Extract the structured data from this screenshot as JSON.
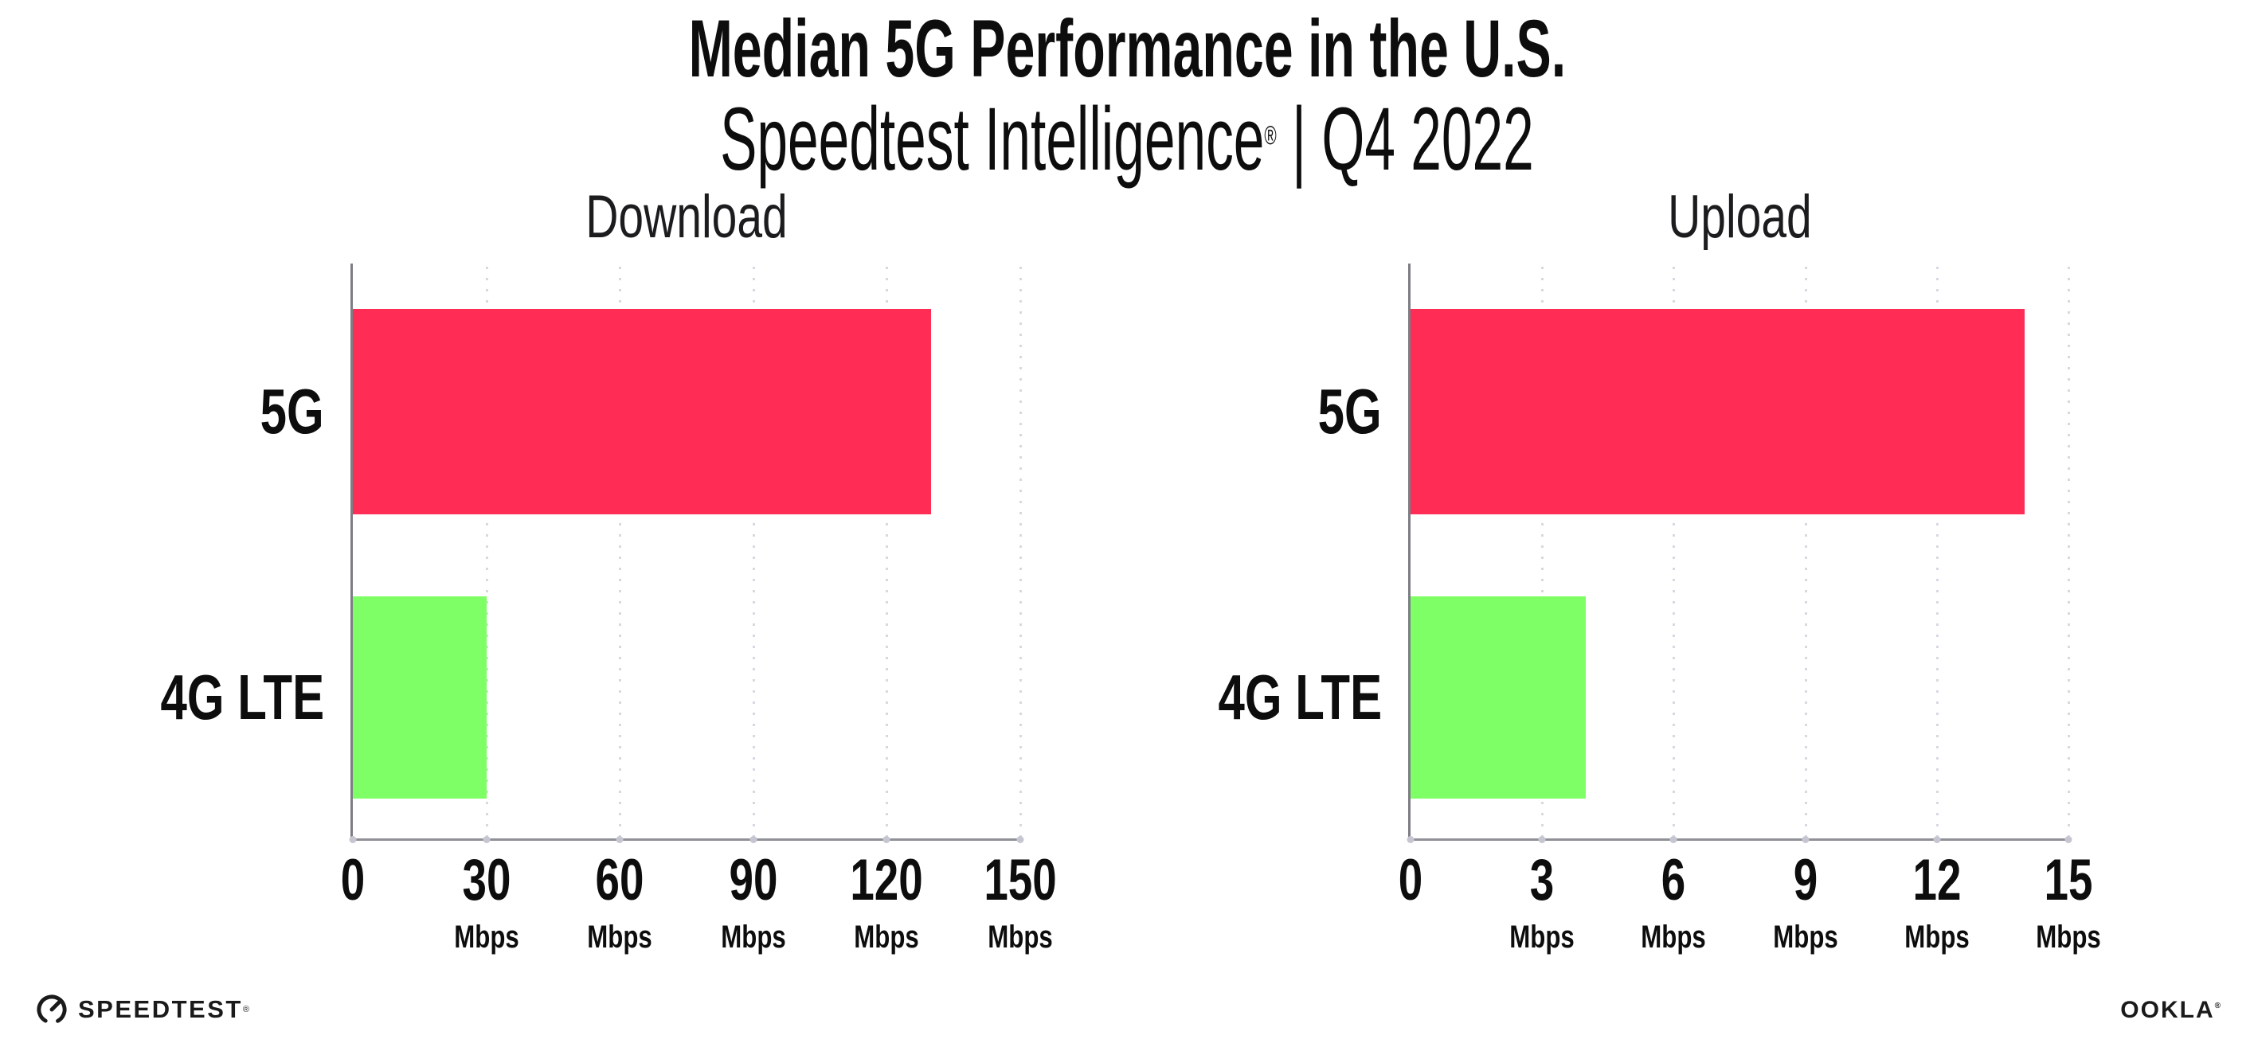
{
  "header": {
    "title": "Median 5G Performance in the U.S.",
    "subtitle_brand": "Speedtest Intelligence",
    "subtitle_reg": "®",
    "subtitle_rest": " | Q4 2022"
  },
  "footer": {
    "speedtest_label": "SPEEDTEST",
    "speedtest_reg": "®",
    "ookla_label": "OOKLA",
    "ookla_reg": "®"
  },
  "colors": {
    "bar_5g": "#FF2D55",
    "bar_4g_lte": "#7FFF66",
    "axis": "#8F8F97",
    "gridline_dots": "#D8D8E2",
    "text": "#0D0D0D"
  },
  "chart_data": [
    {
      "type": "bar",
      "orientation": "horizontal",
      "title": "Download",
      "categories": [
        "5G",
        "4G LTE"
      ],
      "values": [
        130,
        30
      ],
      "unit": "Mbps",
      "xlim": [
        0,
        150
      ],
      "ticks": [
        0,
        30,
        60,
        90,
        120,
        150
      ],
      "tick_unit_label": "Mbps",
      "grid": "vertical-dotted",
      "legend": "none",
      "bar_colors": [
        "#FF2D55",
        "#7FFF66"
      ]
    },
    {
      "type": "bar",
      "orientation": "horizontal",
      "title": "Upload",
      "categories": [
        "5G",
        "4G LTE"
      ],
      "values": [
        14,
        4
      ],
      "unit": "Mbps",
      "xlim": [
        0,
        15
      ],
      "ticks": [
        0,
        3,
        6,
        9,
        12,
        15
      ],
      "tick_unit_label": "Mbps",
      "grid": "vertical-dotted",
      "legend": "none",
      "bar_colors": [
        "#FF2D55",
        "#7FFF66"
      ]
    }
  ]
}
